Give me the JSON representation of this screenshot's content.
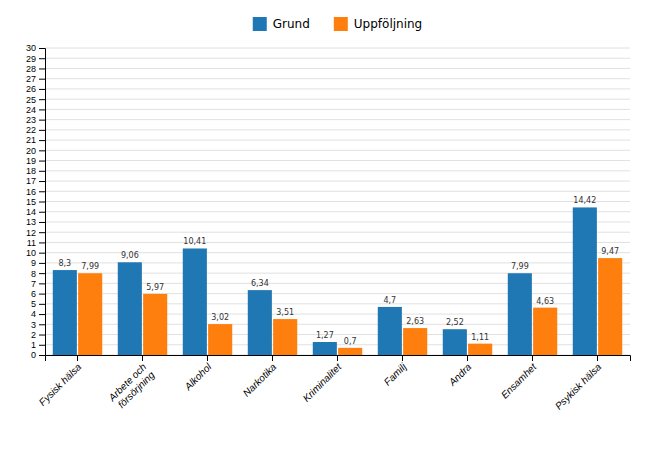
{
  "chart_data": {
    "type": "bar",
    "categories": [
      "Fysisk hälsa",
      "Arbete och\nförsörjning",
      "Alkohol",
      "Narkotika",
      "Kriminalitet",
      "Familj",
      "Andra",
      "Ensamhet",
      "Psykisk hälsa"
    ],
    "series": [
      {
        "name": "Grund",
        "values": [
          8.3,
          9.06,
          10.41,
          6.34,
          1.27,
          4.7,
          2.52,
          7.99,
          14.42
        ],
        "value_labels": [
          "8,3",
          "9,06",
          "10,41",
          "6,34",
          "1,27",
          "4,7",
          "2,52",
          "7,99",
          "14,42"
        ]
      },
      {
        "name": "Uppföljning",
        "values": [
          7.99,
          5.97,
          3.02,
          3.51,
          0.7,
          2.63,
          1.11,
          4.63,
          9.47
        ],
        "value_labels": [
          "7,99",
          "5,97",
          "3,02",
          "3,51",
          "0,7",
          "2,63",
          "1,11",
          "4,63",
          "9,47"
        ]
      }
    ],
    "ylim": [
      0,
      30
    ],
    "yticks": [
      0,
      1,
      2,
      3,
      4,
      5,
      6,
      7,
      8,
      9,
      10,
      11,
      12,
      13,
      14,
      15,
      16,
      17,
      18,
      19,
      20,
      21,
      22,
      23,
      24,
      25,
      26,
      27,
      28,
      29,
      30
    ],
    "grid": true,
    "legend": "top",
    "data_labels": true
  }
}
